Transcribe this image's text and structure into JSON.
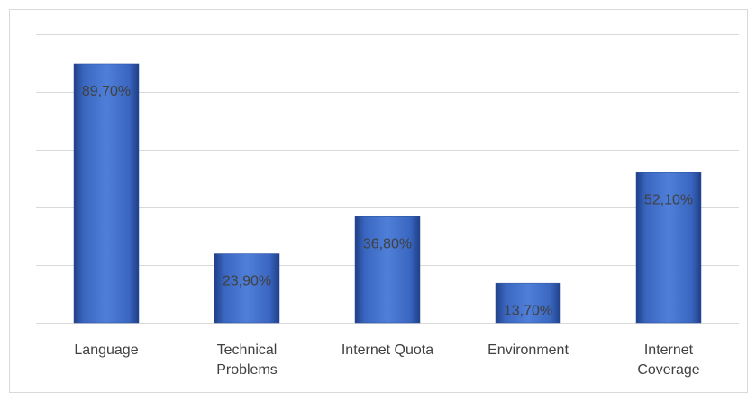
{
  "chart_data": {
    "type": "bar",
    "categories": [
      "Language",
      "Technical Problems",
      "Internet Quota",
      "Environment",
      "Internet Coverage"
    ],
    "values": [
      89.7,
      23.9,
      36.8,
      13.7,
      52.1
    ],
    "value_labels": [
      "89,70%",
      "23,90%",
      "36,80%",
      "13,70%",
      "52,10%"
    ],
    "color": "#4472c4",
    "ylim": [
      0,
      100
    ],
    "yticks": [
      0,
      20,
      40,
      60,
      80,
      100
    ],
    "grid": true
  }
}
